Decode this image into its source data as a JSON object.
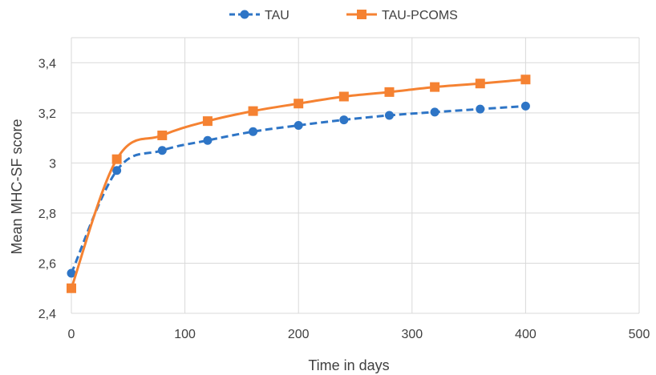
{
  "chart_data": {
    "type": "line",
    "title": "",
    "xlabel": "Time in days",
    "ylabel": "Mean MHC-SF  score",
    "xlim": [
      0,
      500
    ],
    "ylim": [
      2.4,
      3.5
    ],
    "x_ticks": [
      0,
      100,
      200,
      300,
      400,
      500
    ],
    "x_tick_labels": [
      "0",
      "100",
      "200",
      "300",
      "400",
      "500"
    ],
    "y_ticks": [
      2.4,
      2.6,
      2.8,
      3.0,
      3.2,
      3.4
    ],
    "y_tick_labels": [
      "2,4",
      "2,6",
      "2,8",
      "3",
      "3,2",
      "3,4"
    ],
    "grid": true,
    "legend_position": "top",
    "x": [
      0,
      40,
      80,
      120,
      160,
      200,
      240,
      280,
      320,
      360,
      400
    ],
    "series": [
      {
        "name": "TAU",
        "values": [
          2.56,
          2.97,
          3.05,
          3.09,
          3.125,
          3.15,
          3.172,
          3.19,
          3.203,
          3.215,
          3.227
        ],
        "color": "#2E75C6",
        "marker": "circle",
        "line_style": "dashed"
      },
      {
        "name": "TAU-PCOMS",
        "values": [
          2.5,
          3.015,
          3.11,
          3.167,
          3.207,
          3.237,
          3.265,
          3.283,
          3.303,
          3.317,
          3.333
        ],
        "color": "#F58232",
        "marker": "square",
        "line_style": "solid"
      }
    ]
  }
}
